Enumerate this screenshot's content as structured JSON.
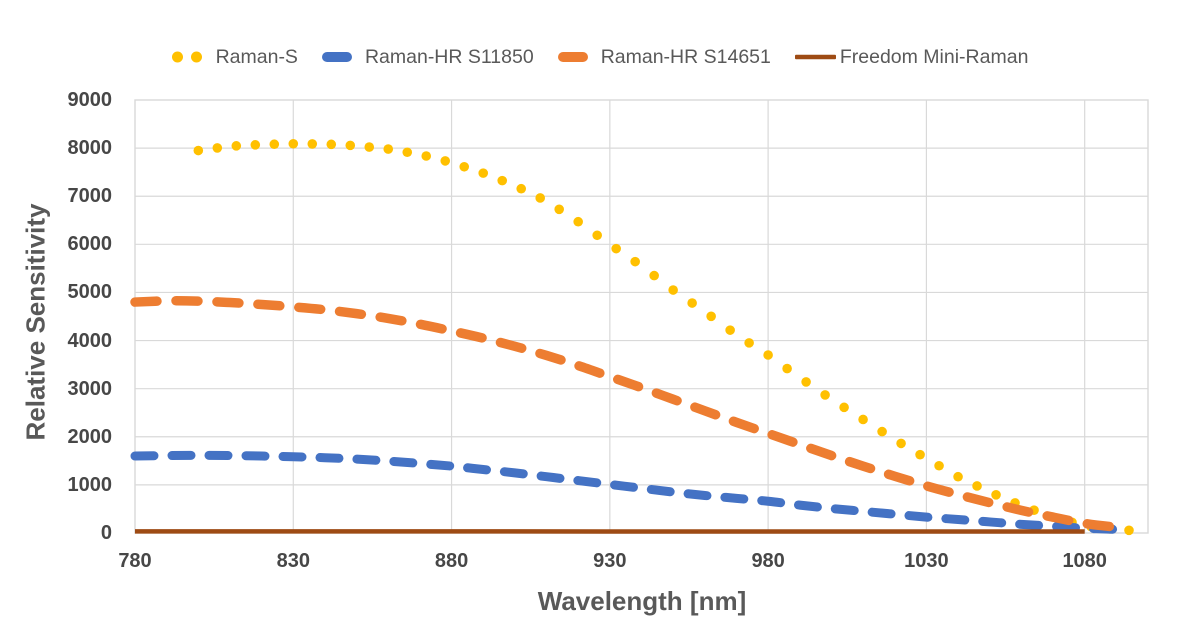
{
  "chart_data": {
    "type": "line",
    "title": "",
    "xlabel": "Wavelength [nm]",
    "ylabel": "Relative Sensitivity",
    "xlim": [
      780,
      1100
    ],
    "ylim": [
      0,
      9000
    ],
    "x_ticks": [
      780,
      830,
      880,
      930,
      980,
      1030,
      1080
    ],
    "y_ticks": [
      0,
      1000,
      2000,
      3000,
      4000,
      5000,
      6000,
      7000,
      8000,
      9000
    ],
    "grid": true,
    "legend_position": "top",
    "colors": {
      "grid": "#D9D9D9",
      "tick_text": "#474747",
      "title_text": "#595959"
    },
    "series": [
      {
        "name": "Raman-S",
        "color": "#FFC000",
        "style": "dotted",
        "marker_radius": 4.8,
        "dot_step_nm": 6,
        "x": [
          800,
          810,
          820,
          830,
          840,
          850,
          860,
          870,
          880,
          890,
          900,
          910,
          920,
          930,
          940,
          950,
          960,
          970,
          980,
          990,
          1000,
          1010,
          1020,
          1030,
          1040,
          1050,
          1060,
          1070,
          1080,
          1090,
          1100
        ],
        "y": [
          7950,
          8040,
          8075,
          8090,
          8085,
          8050,
          7980,
          7870,
          7700,
          7480,
          7220,
          6900,
          6470,
          6000,
          5550,
          5050,
          4600,
          4120,
          3700,
          3230,
          2780,
          2360,
          1940,
          1550,
          1170,
          850,
          570,
          330,
          150,
          70,
          35
        ]
      },
      {
        "name": "Raman-HR S11850",
        "color": "#4472C4",
        "style": "dashed",
        "stroke_width": 9,
        "dash": [
          19,
          18
        ],
        "x": [
          780,
          790,
          800,
          810,
          820,
          830,
          840,
          850,
          860,
          870,
          880,
          890,
          900,
          910,
          920,
          930,
          940,
          950,
          960,
          970,
          980,
          990,
          1000,
          1010,
          1020,
          1030,
          1040,
          1050,
          1060,
          1070,
          1080,
          1090
        ],
        "y": [
          1600,
          1610,
          1615,
          1610,
          1600,
          1585,
          1565,
          1535,
          1495,
          1445,
          1390,
          1320,
          1250,
          1170,
          1090,
          1010,
          930,
          850,
          780,
          720,
          660,
          580,
          510,
          450,
          390,
          330,
          280,
          230,
          180,
          140,
          100,
          75
        ]
      },
      {
        "name": "Raman-HR S14651",
        "color": "#ED7D31",
        "style": "dashed",
        "stroke_width": 9.5,
        "dash": [
          22,
          19
        ],
        "x": [
          780,
          790,
          800,
          810,
          820,
          830,
          840,
          850,
          860,
          870,
          880,
          890,
          900,
          910,
          920,
          930,
          940,
          950,
          960,
          970,
          980,
          990,
          1000,
          1010,
          1020,
          1030,
          1040,
          1050,
          1060,
          1070,
          1080,
          1090
        ],
        "y": [
          4800,
          4825,
          4820,
          4790,
          4750,
          4700,
          4640,
          4560,
          4460,
          4340,
          4200,
          4050,
          3880,
          3690,
          3480,
          3250,
          3020,
          2780,
          2540,
          2300,
          2070,
          1840,
          1610,
          1390,
          1180,
          980,
          800,
          630,
          470,
          330,
          200,
          120
        ]
      },
      {
        "name": "Freedom Mini-Raman",
        "color": "#9E4B14",
        "style": "solid",
        "stroke_width": 4.5,
        "x": [
          780,
          880,
          980,
          1080
        ],
        "y": [
          35,
          33,
          31,
          30
        ]
      }
    ]
  }
}
